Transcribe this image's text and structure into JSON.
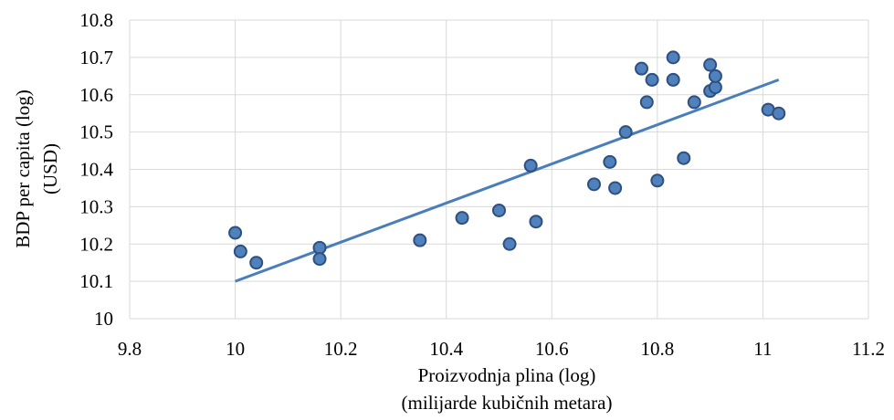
{
  "chart_data": {
    "type": "scatter",
    "title": "",
    "xlabel_lines": [
      "Proizvodnja plina (log)",
      "(milijarde kubičnih metara)"
    ],
    "ylabel_lines": [
      "BDP per capita (log)",
      "(USD)"
    ],
    "xlim": [
      9.8,
      11.2
    ],
    "ylim": [
      10.0,
      10.8
    ],
    "x_ticks": [
      "9.8",
      "10",
      "10.2",
      "10.4",
      "10.6",
      "10.8",
      "11",
      "11.2"
    ],
    "y_ticks": [
      "10",
      "10.1",
      "10.2",
      "10.3",
      "10.4",
      "10.5",
      "10.6",
      "10.7",
      "10.8"
    ],
    "grid": true,
    "colors": {
      "point": "#4f81bd",
      "point_border": "#2f4f7f",
      "trendline": "#4a7ebb",
      "grid": "#d9d9d9"
    },
    "series": [
      {
        "points": [
          [
            10.0,
            10.23
          ],
          [
            10.01,
            10.18
          ],
          [
            10.04,
            10.15
          ],
          [
            10.16,
            10.19
          ],
          [
            10.16,
            10.16
          ],
          [
            10.35,
            10.21
          ],
          [
            10.43,
            10.27
          ],
          [
            10.5,
            10.29
          ],
          [
            10.52,
            10.2
          ],
          [
            10.56,
            10.41
          ],
          [
            10.57,
            10.26
          ],
          [
            10.68,
            10.36
          ],
          [
            10.71,
            10.42
          ],
          [
            10.72,
            10.35
          ],
          [
            10.74,
            10.5
          ],
          [
            10.77,
            10.67
          ],
          [
            10.78,
            10.58
          ],
          [
            10.79,
            10.64
          ],
          [
            10.8,
            10.37
          ],
          [
            10.83,
            10.7
          ],
          [
            10.83,
            10.64
          ],
          [
            10.85,
            10.43
          ],
          [
            10.87,
            10.58
          ],
          [
            10.9,
            10.61
          ],
          [
            10.9,
            10.68
          ],
          [
            10.91,
            10.62
          ],
          [
            10.91,
            10.65
          ],
          [
            11.01,
            10.56
          ],
          [
            11.03,
            10.55
          ]
        ]
      }
    ],
    "trendline": {
      "x": [
        10.0,
        11.03
      ],
      "y": [
        10.1,
        10.64
      ]
    }
  }
}
